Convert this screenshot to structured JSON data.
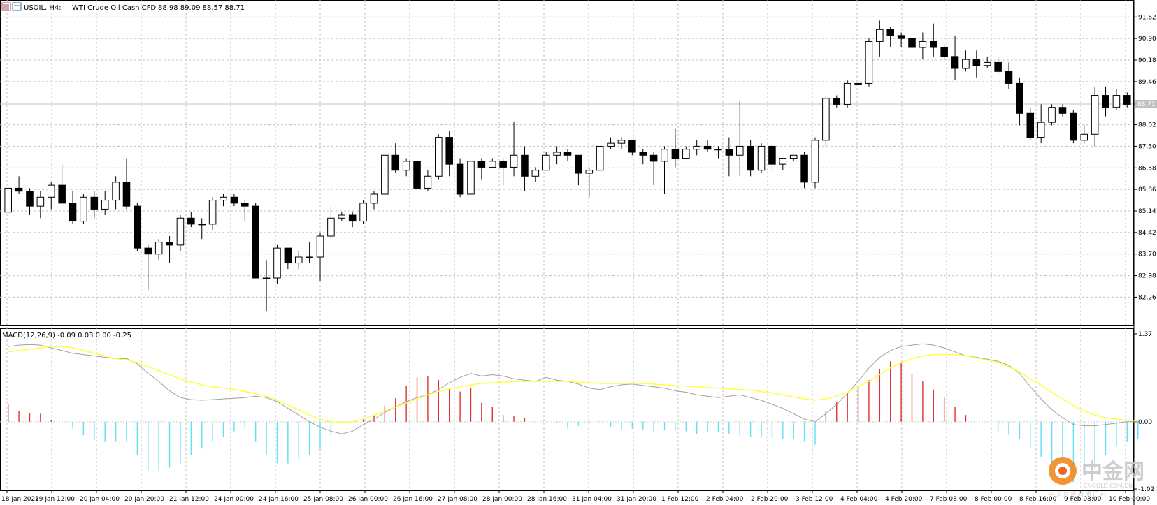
{
  "header": {
    "symbol_label": "USOIL, H4:",
    "description": "WTI Crude Oil Cash CFD",
    "ohlc": "88.98 89.09 88.57 88.71"
  },
  "macd_header": "MACD(12,26,9) -0.09 0.03 0.00 -0.25",
  "watermark": {
    "brand": "中金网",
    "site": "CNGOLD.COM.CN",
    "tagline": "中 文 财 经 新 闻 门 户"
  },
  "colors": {
    "bull_body": "#ffffff",
    "bear_body": "#000000",
    "grid": "#c0c0c0",
    "signal_line": "#ffff33",
    "macd_line": "#a0a0a0",
    "hist_pos": "#e03030",
    "hist_neg": "#60e0f0"
  },
  "chart_data": [
    {
      "type": "candlestick",
      "title": "",
      "ylim": [
        81.5,
        92.0
      ],
      "y_ticks": [
        "91.62",
        "90.90",
        "90.18",
        "89.46",
        "88.71",
        "88.02",
        "87.30",
        "86.58",
        "85.86",
        "85.14",
        "84.42",
        "83.70",
        "82.98",
        "82.26"
      ],
      "current_price": "88.71",
      "x_ticks": [
        "18 Jan 2022",
        "19 Jan 12:00",
        "20 Jan 04:00",
        "20 Jan 20:00",
        "21 Jan 12:00",
        "24 Jan 00:00",
        "24 Jan 16:00",
        "25 Jan 08:00",
        "26 Jan 00:00",
        "26 Jan 16:00",
        "27 Jan 08:00",
        "28 Jan 00:00",
        "28 Jan 16:00",
        "31 Jan 04:00",
        "31 Jan 20:00",
        "1 Feb 12:00",
        "2 Feb 04:00",
        "2 Feb 20:00",
        "3 Feb 12:00",
        "4 Feb 04:00",
        "4 Feb 20:00",
        "7 Feb 08:00",
        "8 Feb 00:00",
        "8 Feb 16:00",
        "9 Feb 08:00",
        "10 Feb 00:00"
      ],
      "candles": [
        [
          85.1,
          85.9,
          85.1,
          85.9
        ],
        [
          85.9,
          86.3,
          85.7,
          85.8
        ],
        [
          85.8,
          85.9,
          85.0,
          85.3
        ],
        [
          85.3,
          85.8,
          84.9,
          85.6
        ],
        [
          85.6,
          86.1,
          85.2,
          86.0
        ],
        [
          86.0,
          86.7,
          85.4,
          85.4
        ],
        [
          85.4,
          85.8,
          84.7,
          84.8
        ],
        [
          84.8,
          85.7,
          84.7,
          85.6
        ],
        [
          85.6,
          85.8,
          84.9,
          85.2
        ],
        [
          85.2,
          85.8,
          85.0,
          85.5
        ],
        [
          85.5,
          86.3,
          85.2,
          86.1
        ],
        [
          86.1,
          86.9,
          85.2,
          85.3
        ],
        [
          85.3,
          85.4,
          83.8,
          83.9
        ],
        [
          83.9,
          84.0,
          82.5,
          83.7
        ],
        [
          83.7,
          84.2,
          83.5,
          84.1
        ],
        [
          84.1,
          84.3,
          83.4,
          84.0
        ],
        [
          84.0,
          85.0,
          83.8,
          84.9
        ],
        [
          84.9,
          85.1,
          84.6,
          84.7
        ],
        [
          84.7,
          84.9,
          84.2,
          84.7
        ],
        [
          84.7,
          85.6,
          84.5,
          85.5
        ],
        [
          85.5,
          85.7,
          85.3,
          85.6
        ],
        [
          85.6,
          85.7,
          85.3,
          85.4
        ],
        [
          85.4,
          85.5,
          84.8,
          85.3
        ],
        [
          85.3,
          85.4,
          82.9,
          82.9
        ],
        [
          82.9,
          83.5,
          81.8,
          82.9
        ],
        [
          82.9,
          84.0,
          82.7,
          83.9
        ],
        [
          83.9,
          83.9,
          83.2,
          83.4
        ],
        [
          83.4,
          83.8,
          83.2,
          83.6
        ],
        [
          83.6,
          84.1,
          83.4,
          83.6
        ],
        [
          83.6,
          84.4,
          82.8,
          84.3
        ],
        [
          84.3,
          85.3,
          84.2,
          84.9
        ],
        [
          84.9,
          85.1,
          84.8,
          85.0
        ],
        [
          85.0,
          85.1,
          84.6,
          84.8
        ],
        [
          84.8,
          85.5,
          84.7,
          85.4
        ],
        [
          85.4,
          85.8,
          85.2,
          85.7
        ],
        [
          85.7,
          87.0,
          85.7,
          87.0
        ],
        [
          87.0,
          87.4,
          86.4,
          86.5
        ],
        [
          86.5,
          86.9,
          86.3,
          86.8
        ],
        [
          86.8,
          86.9,
          85.7,
          85.9
        ],
        [
          85.9,
          86.5,
          85.8,
          86.3
        ],
        [
          86.3,
          87.7,
          86.2,
          87.6
        ],
        [
          87.6,
          87.8,
          86.3,
          86.7
        ],
        [
          86.7,
          86.9,
          85.6,
          85.7
        ],
        [
          85.7,
          86.8,
          85.7,
          86.8
        ],
        [
          86.8,
          86.9,
          86.2,
          86.6
        ],
        [
          86.6,
          86.9,
          86.6,
          86.8
        ],
        [
          86.8,
          86.9,
          86.0,
          86.6
        ],
        [
          86.6,
          88.1,
          86.3,
          87.0
        ],
        [
          87.0,
          87.3,
          85.8,
          86.3
        ],
        [
          86.3,
          86.6,
          86.1,
          86.5
        ],
        [
          86.5,
          87.1,
          86.5,
          87.0
        ],
        [
          87.0,
          87.3,
          86.7,
          87.1
        ],
        [
          87.1,
          87.2,
          86.8,
          87.0
        ],
        [
          87.0,
          87.0,
          86.0,
          86.4
        ],
        [
          86.4,
          86.6,
          85.6,
          86.5
        ],
        [
          86.5,
          87.3,
          86.5,
          87.3
        ],
        [
          87.3,
          87.6,
          87.2,
          87.4
        ],
        [
          87.4,
          87.6,
          87.2,
          87.5
        ],
        [
          87.5,
          87.5,
          87.0,
          87.1
        ],
        [
          87.1,
          87.2,
          86.7,
          87.0
        ],
        [
          87.0,
          87.1,
          86.0,
          86.8
        ],
        [
          86.8,
          87.3,
          85.7,
          87.2
        ],
        [
          87.2,
          87.9,
          86.6,
          86.9
        ],
        [
          86.9,
          87.3,
          86.9,
          87.2
        ],
        [
          87.2,
          87.5,
          87.0,
          87.3
        ],
        [
          87.3,
          87.5,
          87.1,
          87.2
        ],
        [
          87.2,
          87.3,
          86.9,
          87.2
        ],
        [
          87.2,
          87.6,
          86.3,
          87.0
        ],
        [
          87.0,
          88.8,
          86.3,
          87.3
        ],
        [
          87.3,
          87.5,
          86.3,
          86.5
        ],
        [
          86.5,
          87.4,
          86.4,
          87.3
        ],
        [
          87.3,
          87.4,
          86.5,
          86.7
        ],
        [
          86.7,
          86.9,
          86.5,
          86.9
        ],
        [
          86.9,
          87.0,
          86.8,
          87.0
        ],
        [
          87.0,
          87.1,
          85.9,
          86.1
        ],
        [
          86.1,
          87.6,
          85.9,
          87.5
        ],
        [
          87.5,
          89.0,
          87.3,
          88.9
        ],
        [
          88.9,
          89.0,
          88.6,
          88.7
        ],
        [
          88.7,
          89.5,
          88.6,
          89.4
        ],
        [
          89.4,
          89.5,
          89.3,
          89.4
        ],
        [
          89.4,
          90.9,
          89.3,
          90.8
        ],
        [
          90.8,
          91.5,
          90.3,
          91.2
        ],
        [
          91.2,
          91.3,
          90.6,
          91.0
        ],
        [
          91.0,
          91.1,
          90.6,
          90.9
        ],
        [
          90.9,
          90.9,
          90.2,
          90.6
        ],
        [
          90.6,
          91.1,
          90.2,
          90.8
        ],
        [
          90.8,
          91.4,
          90.3,
          90.6
        ],
        [
          90.6,
          90.7,
          90.2,
          90.3
        ],
        [
          90.3,
          91.0,
          89.5,
          89.9
        ],
        [
          89.9,
          90.5,
          89.8,
          90.2
        ],
        [
          90.2,
          90.5,
          89.6,
          90.0
        ],
        [
          90.0,
          90.3,
          89.9,
          90.1
        ],
        [
          90.1,
          90.3,
          89.7,
          89.8
        ],
        [
          89.8,
          90.1,
          89.2,
          89.4
        ],
        [
          89.4,
          89.6,
          88.0,
          88.4
        ],
        [
          88.4,
          88.6,
          87.5,
          87.6
        ],
        [
          87.6,
          88.7,
          87.4,
          88.1
        ],
        [
          88.1,
          88.7,
          88.0,
          88.6
        ],
        [
          88.6,
          88.7,
          88.3,
          88.4
        ],
        [
          88.4,
          88.5,
          87.4,
          87.5
        ],
        [
          87.5,
          88.0,
          87.4,
          87.7
        ],
        [
          87.7,
          89.3,
          87.3,
          89.0
        ],
        [
          89.0,
          89.3,
          88.3,
          88.6
        ],
        [
          88.6,
          89.2,
          88.5,
          89.0
        ],
        [
          89.0,
          89.1,
          88.6,
          88.7
        ]
      ]
    },
    {
      "type": "bar+line",
      "title": "MACD(12,26,9)",
      "ylim": [
        -1.02,
        1.37
      ],
      "y_ticks": [
        "1.37",
        "0.00",
        "-1.02"
      ],
      "histogram": [
        0.26,
        0.16,
        0.13,
        0.12,
        0.02,
        0.0,
        -0.1,
        -0.2,
        -0.28,
        -0.3,
        -0.3,
        -0.3,
        -0.5,
        -0.72,
        -0.74,
        -0.68,
        -0.62,
        -0.5,
        -0.4,
        -0.3,
        -0.22,
        -0.14,
        -0.1,
        -0.3,
        -0.5,
        -0.62,
        -0.62,
        -0.55,
        -0.5,
        -0.4,
        -0.2,
        -0.02,
        0.0,
        0.04,
        0.1,
        0.24,
        0.35,
        0.54,
        0.66,
        0.68,
        0.62,
        0.5,
        0.45,
        0.5,
        0.28,
        0.22,
        0.1,
        0.08,
        0.06,
        0.0,
        0.0,
        -0.02,
        -0.1,
        -0.06,
        -0.02,
        0.0,
        -0.08,
        -0.12,
        -0.1,
        -0.12,
        -0.14,
        -0.12,
        -0.12,
        -0.14,
        -0.18,
        -0.16,
        -0.16,
        -0.18,
        -0.2,
        -0.22,
        -0.22,
        -0.24,
        -0.26,
        -0.26,
        -0.3,
        -0.34,
        0.16,
        0.3,
        0.44,
        0.52,
        0.62,
        0.78,
        0.9,
        0.88,
        0.72,
        0.6,
        0.48,
        0.36,
        0.22,
        0.1,
        0.0,
        0.0,
        -0.16,
        -0.2,
        -0.26,
        -0.4,
        -0.52,
        -0.62,
        -0.8,
        -0.9,
        -0.8,
        -0.7,
        -0.5,
        -0.36,
        -0.3,
        -0.25
      ],
      "macd_line": [
        1.12,
        1.14,
        1.15,
        1.14,
        1.1,
        1.06,
        1.02,
        1.0,
        0.98,
        0.96,
        0.94,
        0.94,
        0.86,
        0.72,
        0.6,
        0.46,
        0.36,
        0.33,
        0.32,
        0.33,
        0.34,
        0.35,
        0.36,
        0.38,
        0.36,
        0.3,
        0.2,
        0.1,
        0.0,
        -0.08,
        -0.14,
        -0.18,
        -0.14,
        -0.04,
        0.04,
        0.14,
        0.22,
        0.3,
        0.36,
        0.4,
        0.48,
        0.58,
        0.66,
        0.72,
        0.68,
        0.7,
        0.68,
        0.64,
        0.62,
        0.6,
        0.66,
        0.62,
        0.6,
        0.56,
        0.5,
        0.48,
        0.52,
        0.55,
        0.56,
        0.54,
        0.52,
        0.5,
        0.46,
        0.44,
        0.4,
        0.38,
        0.36,
        0.38,
        0.4,
        0.36,
        0.32,
        0.26,
        0.2,
        0.12,
        0.04,
        0.0,
        0.12,
        0.26,
        0.42,
        0.6,
        0.8,
        0.96,
        1.06,
        1.12,
        1.14,
        1.16,
        1.14,
        1.1,
        1.04,
        0.98,
        0.96,
        0.93,
        0.9,
        0.84,
        0.72,
        0.52,
        0.34,
        0.18,
        0.06,
        -0.04,
        -0.06,
        -0.06,
        -0.04,
        -0.02,
        0.0,
        0.0
      ],
      "signal_line": [
        1.04,
        1.06,
        1.08,
        1.1,
        1.12,
        1.12,
        1.1,
        1.06,
        1.02,
        0.98,
        0.94,
        0.92,
        0.88,
        0.82,
        0.76,
        0.7,
        0.64,
        0.59,
        0.55,
        0.52,
        0.5,
        0.48,
        0.45,
        0.42,
        0.38,
        0.32,
        0.25,
        0.18,
        0.1,
        0.04,
        0.0,
        -0.01,
        0.0,
        0.04,
        0.1,
        0.16,
        0.22,
        0.28,
        0.34,
        0.4,
        0.45,
        0.49,
        0.52,
        0.55,
        0.57,
        0.58,
        0.59,
        0.6,
        0.6,
        0.6,
        0.6,
        0.6,
        0.6,
        0.59,
        0.58,
        0.57,
        0.57,
        0.57,
        0.57,
        0.57,
        0.56,
        0.55,
        0.54,
        0.53,
        0.52,
        0.51,
        0.5,
        0.49,
        0.48,
        0.47,
        0.45,
        0.43,
        0.4,
        0.37,
        0.34,
        0.32,
        0.34,
        0.38,
        0.44,
        0.52,
        0.6,
        0.7,
        0.8,
        0.88,
        0.94,
        0.98,
        1.0,
        1.0,
        1.0,
        0.98,
        0.95,
        0.92,
        0.88,
        0.82,
        0.74,
        0.64,
        0.54,
        0.44,
        0.34,
        0.24,
        0.16,
        0.1,
        0.06,
        0.04,
        0.02,
        0.02
      ]
    }
  ]
}
